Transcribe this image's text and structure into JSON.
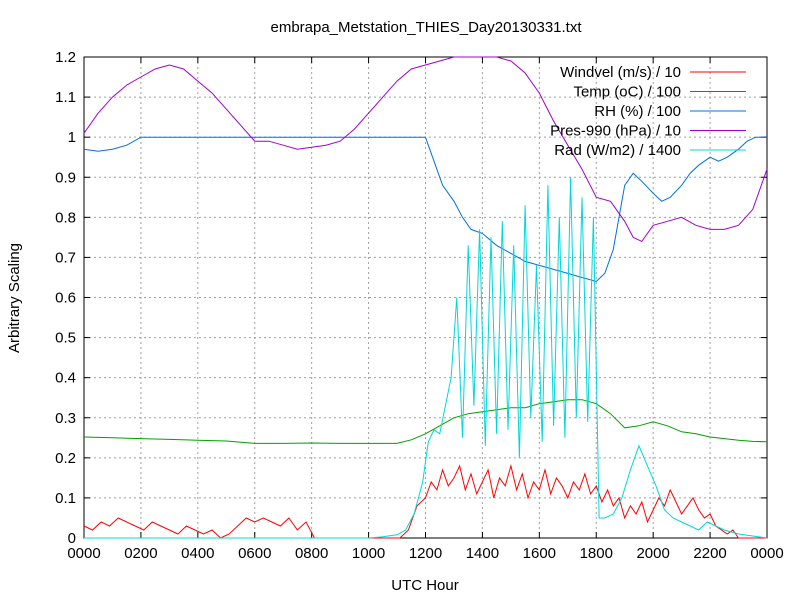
{
  "chart_data": {
    "type": "line",
    "title": "embrapa_Metstation_THIES_Day20130331.txt",
    "xlabel": "UTC Hour",
    "ylabel": "Arbitrary Scaling",
    "xlim": [
      0,
      24
    ],
    "ylim": [
      0,
      1.2
    ],
    "x_tick_labels": [
      "0000",
      "0200",
      "0400",
      "0600",
      "0800",
      "1000",
      "1200",
      "1400",
      "1600",
      "1800",
      "2000",
      "2200",
      "0000"
    ],
    "y_tick_labels": [
      "0",
      "0.1",
      "0.2",
      "0.3",
      "0.4",
      "0.5",
      "0.6",
      "0.7",
      "0.8",
      "0.9",
      "1",
      "1.1",
      "1.2"
    ],
    "y_ticks": [
      0,
      0.1,
      0.2,
      0.3,
      0.4,
      0.5,
      0.6,
      0.7,
      0.8,
      0.9,
      1.0,
      1.1,
      1.2
    ],
    "grid": true,
    "legend_position": "top-right",
    "series": [
      {
        "name": "Windvel (m/s) / 10",
        "color": "#ff0000",
        "x": [
          0,
          0.3,
          0.6,
          0.9,
          1.2,
          1.5,
          1.8,
          2.1,
          2.4,
          2.7,
          3.0,
          3.3,
          3.6,
          3.9,
          4.2,
          4.5,
          4.8,
          5.1,
          5.4,
          5.7,
          6.0,
          6.3,
          6.6,
          6.9,
          7.2,
          7.5,
          7.8,
          8.1,
          8.4,
          8.7,
          9.0,
          9.3,
          9.6,
          9.9,
          10.2,
          10.5,
          10.8,
          11.1,
          11.4,
          11.7,
          12.0,
          12.2,
          12.4,
          12.6,
          12.8,
          13.0,
          13.2,
          13.4,
          13.6,
          13.8,
          14.0,
          14.2,
          14.4,
          14.6,
          14.8,
          15.0,
          15.2,
          15.4,
          15.6,
          15.8,
          16.0,
          16.2,
          16.4,
          16.6,
          16.8,
          17.0,
          17.2,
          17.4,
          17.6,
          17.8,
          18.0,
          18.2,
          18.4,
          18.6,
          18.8,
          19.0,
          19.2,
          19.4,
          19.6,
          19.8,
          20.0,
          20.2,
          20.4,
          20.6,
          20.8,
          21.0,
          21.2,
          21.4,
          21.6,
          21.8,
          22.0,
          22.2,
          22.4,
          22.6,
          22.8,
          23.0,
          23.2,
          23.4,
          23.6,
          24
        ],
        "values": [
          0.03,
          0.02,
          0.04,
          0.03,
          0.05,
          0.04,
          0.03,
          0.02,
          0.04,
          0.03,
          0.02,
          0.01,
          0.03,
          0.02,
          0.01,
          0.02,
          0.0,
          0.01,
          0.03,
          0.05,
          0.04,
          0.05,
          0.04,
          0.03,
          0.05,
          0.02,
          0.04,
          0.0,
          0.0,
          0.0,
          0.0,
          0.0,
          0.0,
          0.0,
          0.0,
          0.0,
          0.0,
          0.0,
          0.02,
          0.08,
          0.1,
          0.14,
          0.12,
          0.17,
          0.13,
          0.15,
          0.18,
          0.12,
          0.16,
          0.11,
          0.14,
          0.17,
          0.1,
          0.15,
          0.13,
          0.18,
          0.12,
          0.16,
          0.1,
          0.14,
          0.12,
          0.17,
          0.11,
          0.15,
          0.13,
          0.1,
          0.14,
          0.12,
          0.16,
          0.11,
          0.13,
          0.09,
          0.12,
          0.08,
          0.1,
          0.05,
          0.08,
          0.06,
          0.09,
          0.04,
          0.07,
          0.1,
          0.08,
          0.12,
          0.09,
          0.06,
          0.08,
          0.1,
          0.07,
          0.05,
          0.06,
          0.03,
          0.02,
          0.01,
          0.02,
          0.0,
          0.0,
          0.0,
          0.0,
          0.0
        ]
      },
      {
        "name": "Temp (oC) / 100",
        "color": "#00a000",
        "x": [
          0,
          1,
          2,
          3,
          4,
          5,
          6,
          7,
          8,
          9,
          10,
          11,
          11.5,
          12,
          12.5,
          13,
          13.5,
          14,
          14.5,
          15,
          15.5,
          16,
          16.5,
          17,
          17.5,
          18,
          18.5,
          19,
          19.5,
          20,
          20.5,
          21,
          21.5,
          22,
          22.5,
          23,
          23.5,
          24
        ],
        "values": [
          0.252,
          0.25,
          0.248,
          0.246,
          0.244,
          0.242,
          0.236,
          0.236,
          0.237,
          0.236,
          0.236,
          0.236,
          0.245,
          0.26,
          0.28,
          0.3,
          0.31,
          0.315,
          0.32,
          0.325,
          0.325,
          0.335,
          0.34,
          0.345,
          0.345,
          0.335,
          0.31,
          0.275,
          0.28,
          0.29,
          0.28,
          0.265,
          0.26,
          0.252,
          0.248,
          0.244,
          0.241,
          0.24
        ]
      },
      {
        "name": "RH (%) / 100",
        "color": "#0070e0",
        "x": [
          0,
          0.5,
          1.0,
          1.5,
          2,
          3,
          4,
          5,
          6,
          7,
          8,
          9,
          10,
          11,
          11.5,
          12,
          12.3,
          12.6,
          13,
          13.3,
          13.6,
          14,
          14.5,
          15,
          15.5,
          16,
          16.5,
          17,
          17.5,
          18,
          18.3,
          18.6,
          19,
          19.3,
          19.6,
          20,
          20.3,
          20.6,
          21,
          21.3,
          21.6,
          22,
          22.3,
          22.6,
          23,
          23.3,
          23.6,
          24
        ],
        "values": [
          0.97,
          0.965,
          0.97,
          0.98,
          1.0,
          1.0,
          1.0,
          1.0,
          1.0,
          1.0,
          1.0,
          1.0,
          1.0,
          1.0,
          1.0,
          1.0,
          0.94,
          0.88,
          0.84,
          0.8,
          0.77,
          0.76,
          0.73,
          0.71,
          0.69,
          0.68,
          0.67,
          0.66,
          0.65,
          0.64,
          0.66,
          0.72,
          0.88,
          0.91,
          0.89,
          0.86,
          0.84,
          0.85,
          0.88,
          0.91,
          0.93,
          0.95,
          0.94,
          0.95,
          0.97,
          0.99,
          1.0,
          1.0
        ]
      },
      {
        "name": "Pres-990 (hPa) / 10",
        "color": "#a000d0",
        "x": [
          0,
          0.5,
          1,
          1.5,
          2,
          2.5,
          3,
          3.5,
          4,
          4.5,
          5,
          5.5,
          6,
          6.5,
          7,
          7.5,
          8,
          8.5,
          9,
          9.5,
          10,
          10.5,
          11,
          11.5,
          12,
          12.5,
          13,
          13.5,
          14,
          14.5,
          15,
          15.5,
          16,
          16.5,
          17,
          17.5,
          18,
          18.5,
          19,
          19.3,
          19.6,
          20,
          20.5,
          21,
          21.5,
          22,
          22.5,
          23,
          23.5,
          24
        ],
        "values": [
          1.01,
          1.06,
          1.1,
          1.13,
          1.15,
          1.17,
          1.18,
          1.17,
          1.14,
          1.11,
          1.07,
          1.03,
          0.99,
          0.99,
          0.98,
          0.97,
          0.975,
          0.98,
          0.99,
          1.02,
          1.06,
          1.1,
          1.14,
          1.17,
          1.18,
          1.19,
          1.2,
          1.2,
          1.2,
          1.2,
          1.19,
          1.16,
          1.11,
          1.04,
          0.98,
          0.92,
          0.85,
          0.84,
          0.79,
          0.75,
          0.74,
          0.78,
          0.79,
          0.8,
          0.78,
          0.77,
          0.77,
          0.78,
          0.82,
          0.92
        ]
      },
      {
        "name": "Rad (W/m2) / 1400",
        "color": "#00d8d8",
        "x": [
          0,
          2,
          4,
          6,
          8,
          10,
          10.5,
          11,
          11.3,
          11.6,
          11.9,
          12.1,
          12.3,
          12.5,
          12.7,
          12.9,
          13.1,
          13.3,
          13.5,
          13.7,
          13.9,
          14.1,
          14.3,
          14.5,
          14.7,
          14.9,
          15.1,
          15.3,
          15.5,
          15.7,
          15.9,
          16.1,
          16.3,
          16.5,
          16.7,
          16.9,
          17.1,
          17.3,
          17.5,
          17.7,
          17.9,
          18.1,
          18.3,
          18.6,
          18.9,
          19.2,
          19.5,
          19.8,
          20.1,
          20.4,
          20.7,
          21.0,
          21.3,
          21.6,
          21.9,
          22.2,
          22.5,
          23,
          23.5,
          24
        ],
        "values": [
          0,
          0,
          0,
          0,
          0,
          0,
          0.003,
          0.008,
          0.02,
          0.06,
          0.14,
          0.24,
          0.27,
          0.26,
          0.33,
          0.4,
          0.6,
          0.25,
          0.73,
          0.33,
          0.77,
          0.23,
          0.75,
          0.26,
          0.79,
          0.27,
          0.73,
          0.2,
          0.83,
          0.3,
          0.68,
          0.24,
          0.88,
          0.28,
          0.8,
          0.25,
          0.9,
          0.3,
          0.85,
          0.29,
          0.8,
          0.05,
          0.05,
          0.06,
          0.1,
          0.17,
          0.23,
          0.18,
          0.13,
          0.07,
          0.05,
          0.04,
          0.03,
          0.02,
          0.04,
          0.03,
          0.02,
          0.01,
          0.005,
          0
        ]
      }
    ]
  }
}
